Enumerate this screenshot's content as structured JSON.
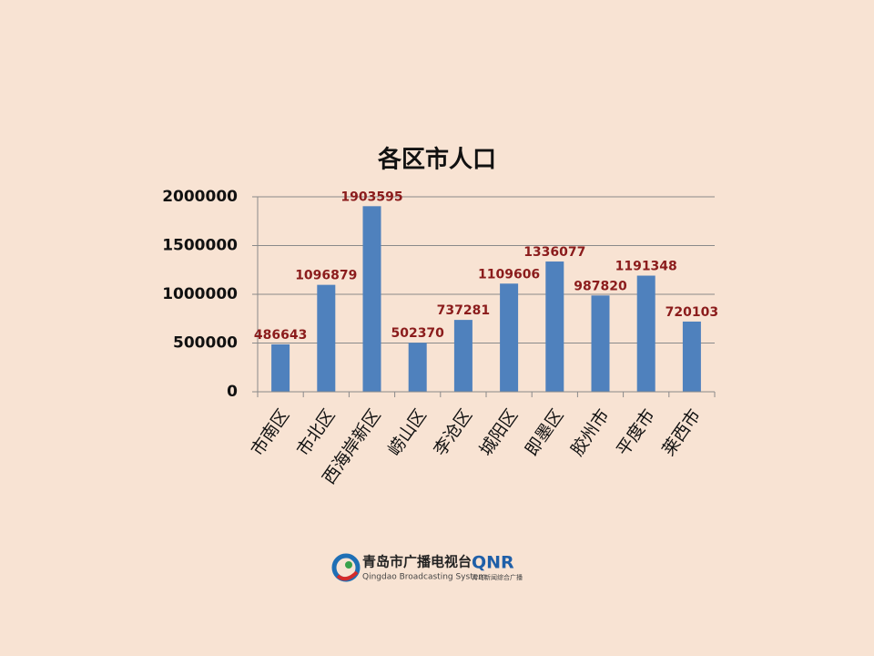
{
  "chart_data": {
    "type": "bar",
    "title": "各区市人口",
    "categories": [
      "市南区",
      "市北区",
      "西海岸新区",
      "崂山区",
      "李沧区",
      "城阳区",
      "即墨区",
      "胶州市",
      "平度市",
      "莱西市"
    ],
    "values": [
      486643,
      1096879,
      1903595,
      502370,
      737281,
      1109606,
      1336077,
      987820,
      1191348,
      720103
    ],
    "color": "#4f81bd",
    "label_color": "#8b1c1c",
    "ylim": [
      0,
      2000000
    ],
    "yticks": [
      0,
      500000,
      1000000,
      1500000,
      2000000
    ],
    "grid": true
  },
  "logo": {
    "name": "青岛市广播电视台",
    "english": "Qingdao Broadcasting System",
    "brand": "QNR",
    "brand_sub": "青岛新闻综合广播"
  }
}
